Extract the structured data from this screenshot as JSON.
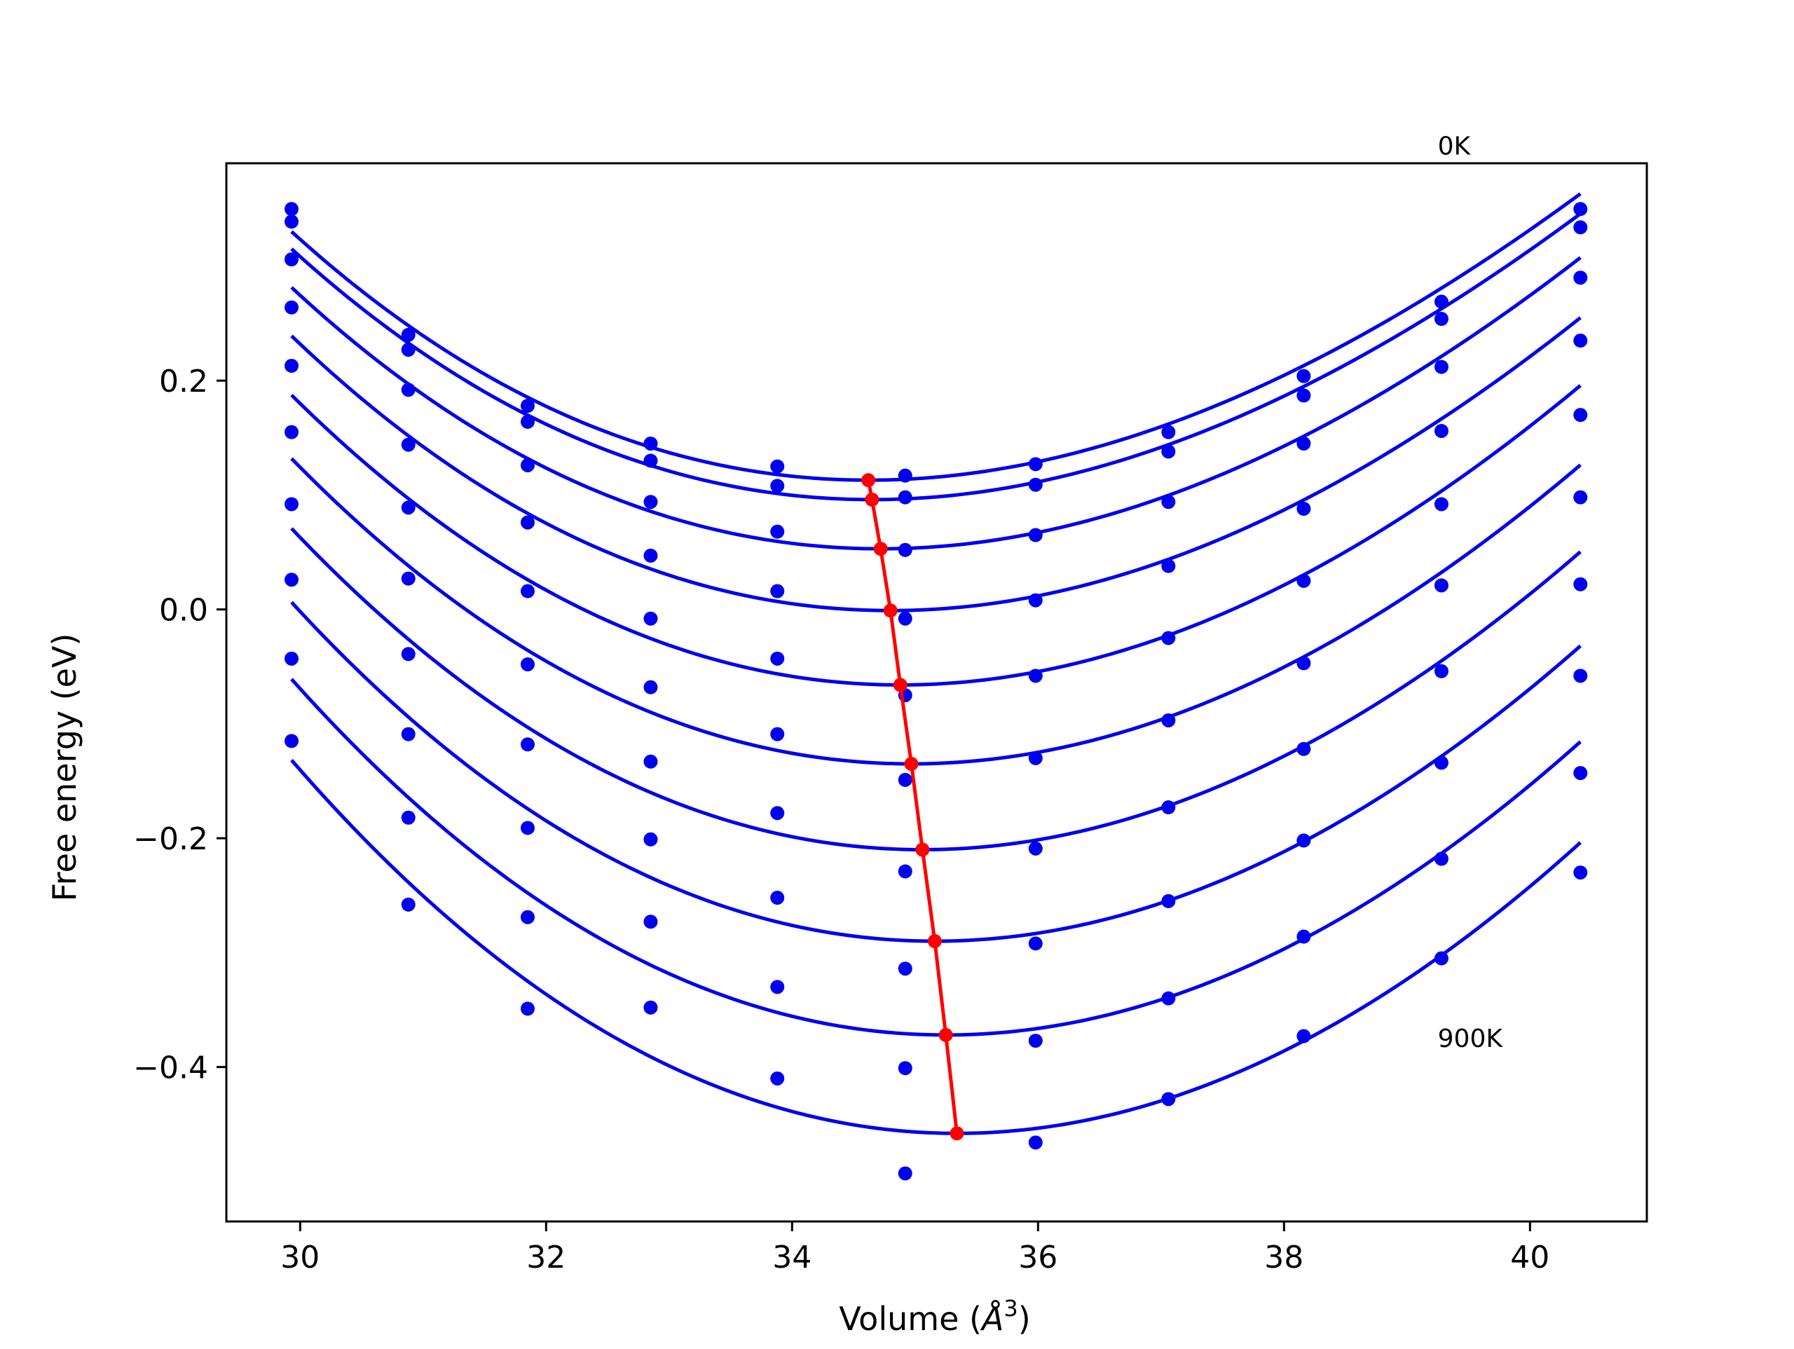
{
  "chart_data": {
    "type": "line",
    "title": "",
    "xlabel": "Volume (Å³)",
    "xlabel_main": "Volume (",
    "xlabel_unit": "Å",
    "xlabel_sup": "3",
    "xlabel_close": ")",
    "ylabel": "Free energy (eV)",
    "xlim": [
      29.4,
      40.95
    ],
    "ylim": [
      -0.535,
      0.39
    ],
    "xticks": [
      30,
      32,
      34,
      36,
      38,
      40
    ],
    "xtick_labels": [
      "30",
      "32",
      "34",
      "36",
      "38",
      "40"
    ],
    "yticks": [
      -0.4,
      -0.2,
      0.0,
      0.2
    ],
    "ytick_labels": [
      "−0.4",
      "−0.2",
      "0.0",
      "0.2"
    ],
    "grid": false,
    "annotations": [
      {
        "text": "0K",
        "x": 39.25,
        "y": 0.405
      },
      {
        "text": "900K",
        "x": 39.25,
        "y": -0.375
      }
    ],
    "point_volumes": [
      29.93,
      30.88,
      31.85,
      32.85,
      33.88,
      34.92,
      35.98,
      37.06,
      38.16,
      39.28,
      40.41
    ],
    "series": [
      {
        "points": [
          0.35,
          0.24,
          0.178,
          0.145,
          0.125,
          0.117,
          0.127,
          0.155,
          0.204,
          0.269,
          0.35
        ],
        "fit": {
          "v0": 34.62,
          "e0": 0.113,
          "a": 0.0088,
          "b": 0.00023
        }
      },
      {
        "points": [
          0.339,
          0.227,
          0.164,
          0.13,
          0.108,
          0.098,
          0.109,
          0.138,
          0.187,
          0.254,
          0.334
        ],
        "fit": {
          "v0": 34.65,
          "e0": 0.096,
          "a": 0.0088,
          "b": 0.00022
        }
      },
      {
        "points": [
          0.306,
          0.192,
          0.126,
          0.094,
          0.068,
          0.052,
          0.065,
          0.094,
          0.145,
          0.212,
          0.29
        ],
        "fit": {
          "v0": 34.72,
          "e0": 0.053,
          "a": 0.009,
          "b": 0.0002
        }
      },
      {
        "points": [
          0.264,
          0.144,
          0.076,
          0.047,
          0.016,
          -0.008,
          0.008,
          0.038,
          0.088,
          0.156,
          0.235
        ],
        "fit": {
          "v0": 34.8,
          "e0": -0.001,
          "a": 0.0092,
          "b": 0.00019
        }
      },
      {
        "points": [
          0.213,
          0.089,
          0.016,
          -0.008,
          -0.043,
          -0.075,
          -0.058,
          -0.025,
          0.025,
          0.092,
          0.17
        ],
        "fit": {
          "v0": 34.88,
          "e0": -0.066,
          "a": 0.0095,
          "b": 0.00017
        }
      },
      {
        "points": [
          0.155,
          0.027,
          -0.048,
          -0.068,
          -0.109,
          -0.149,
          -0.13,
          -0.097,
          -0.047,
          0.021,
          0.098
        ],
        "fit": {
          "v0": 34.97,
          "e0": -0.135,
          "a": 0.0097,
          "b": 0.00016
        }
      },
      {
        "points": [
          0.092,
          -0.039,
          -0.118,
          -0.133,
          -0.178,
          -0.229,
          -0.209,
          -0.173,
          -0.122,
          -0.054,
          0.022
        ],
        "fit": {
          "v0": 35.06,
          "e0": -0.21,
          "a": 0.0099,
          "b": 0.00015
        }
      },
      {
        "points": [
          0.026,
          -0.109,
          -0.191,
          -0.201,
          -0.252,
          -0.314,
          -0.292,
          -0.255,
          -0.202,
          -0.134,
          -0.058
        ],
        "fit": {
          "v0": 35.16,
          "e0": -0.29,
          "a": 0.0101,
          "b": 0.00014
        }
      },
      {
        "points": [
          -0.043,
          -0.182,
          -0.269,
          -0.273,
          -0.33,
          -0.401,
          -0.377,
          -0.34,
          -0.286,
          -0.218,
          -0.143
        ],
        "fit": {
          "v0": 35.25,
          "e0": -0.372,
          "a": 0.0103,
          "b": 0.00013
        }
      },
      {
        "points": [
          -0.115,
          -0.258,
          -0.349,
          -0.348,
          -0.41,
          -0.493,
          -0.466,
          -0.428,
          -0.373,
          -0.305,
          -0.23
        ],
        "fit": {
          "v0": 35.34,
          "e0": -0.458,
          "a": 0.0105,
          "b": 0.00012
        }
      }
    ],
    "colors": {
      "fit_line": "#0000ee",
      "points": "#0000ee",
      "minima": "#ff0000",
      "axes": "#000000",
      "background": "#ffffff"
    },
    "curve_volume_range": [
      29.93,
      40.41
    ]
  }
}
